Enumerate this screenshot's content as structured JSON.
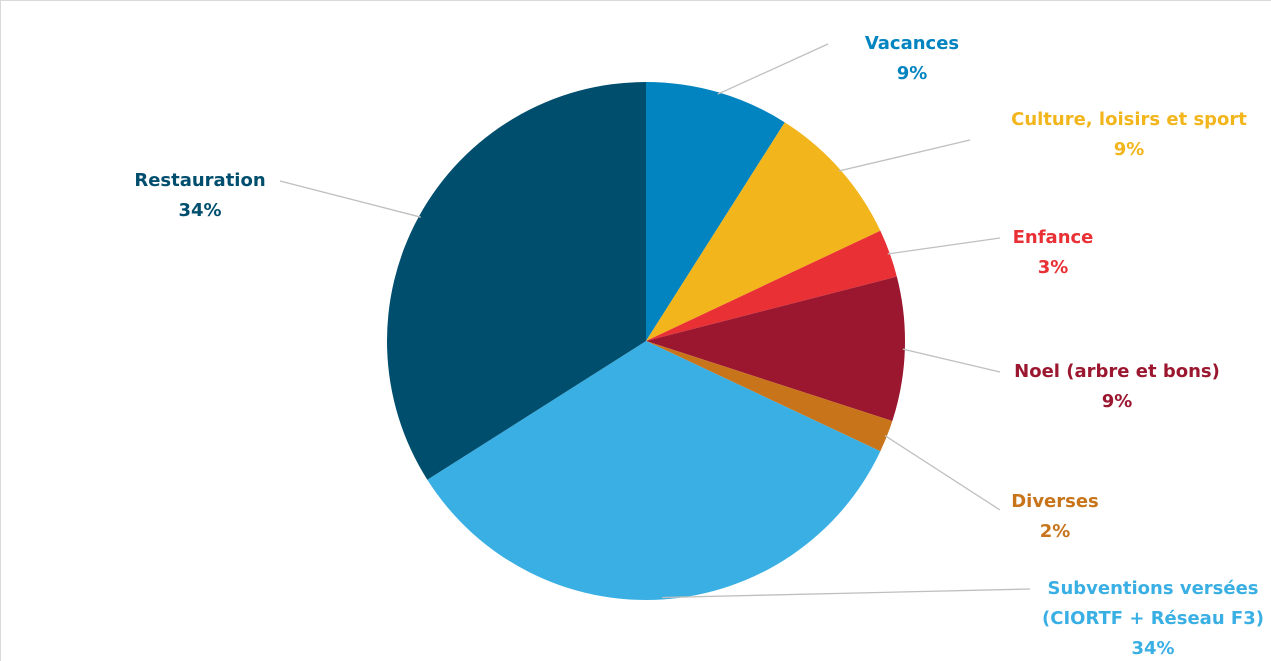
{
  "chart_data": {
    "type": "pie",
    "title": "",
    "start_angle_deg": 0,
    "direction": "clockwise",
    "slices": [
      {
        "label": "Vacances",
        "value": 9,
        "pct_label": "9%",
        "color": "#0284C0"
      },
      {
        "label": "Culture, loisirs et sport",
        "value": 9,
        "pct_label": "9%",
        "color": "#F2B61C"
      },
      {
        "label": "Enfance",
        "value": 3,
        "pct_label": "3%",
        "color": "#E83035"
      },
      {
        "label": "Noel (arbre et bons)",
        "value": 9,
        "pct_label": "9%",
        "color": "#9B1730"
      },
      {
        "label": "Diverses",
        "value": 2,
        "pct_label": "2%",
        "color": "#C8741A"
      },
      {
        "label": "Subventions versées (CIORTF + Réseau F3)",
        "label_lines": [
          "Subventions versées",
          "(CIORTF + Réseau F3)"
        ],
        "value": 34,
        "pct_label": "34%",
        "color": "#3AAFE3"
      },
      {
        "label": "Restauration",
        "value": 34,
        "pct_label": "34%",
        "color": "#004E6E"
      }
    ],
    "legend": "none",
    "leader_line_color": "#BFBFBF"
  }
}
